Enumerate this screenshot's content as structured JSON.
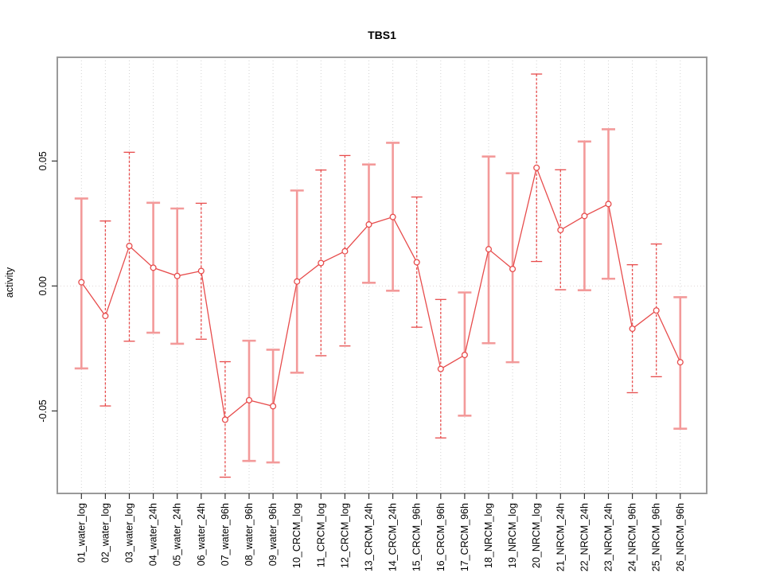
{
  "chart_data": {
    "type": "line",
    "title": "TBS1",
    "ylabel": "activity",
    "xlabel": "",
    "legend": "none",
    "grid": "vertical dotted gridlines at each category; dotted horizontal line at y=0",
    "marker": "open-circle",
    "error_bars": true,
    "categories": [
      "01_water_log",
      "02_water_log",
      "03_water_log",
      "04_water_24h",
      "05_water_24h",
      "06_water_24h",
      "07_water_96h",
      "08_water_96h",
      "09_water_96h",
      "10_CRCM_log",
      "11_CRCM_log",
      "12_CRCM_log",
      "13_CRCM_24h",
      "14_CRCM_24h",
      "15_CRCM_96h",
      "16_CRCM_96h",
      "17_CRCM_96h",
      "18_NRCM_log",
      "19_NRCM_log",
      "20_NRCM_log",
      "21_NRCM_24h",
      "22_NRCM_24h",
      "23_NRCM_24h",
      "24_NRCM_96h",
      "25_NRCM_96h",
      "26_NRCM_96h"
    ],
    "series": [
      {
        "name": "activity",
        "values": [
          0.0015,
          -0.012,
          0.016,
          0.0073,
          0.004,
          0.006,
          -0.0535,
          -0.0457,
          -0.0481,
          0.0018,
          0.0092,
          0.0139,
          0.0246,
          0.0276,
          0.0095,
          -0.0332,
          -0.0276,
          0.0147,
          0.0068,
          0.0473,
          0.0224,
          0.028,
          0.0328,
          -0.0171,
          -0.0098,
          -0.0305
        ],
        "error_upper": [
          0.035,
          0.026,
          0.0535,
          0.0333,
          0.031,
          0.0331,
          -0.0303,
          -0.0219,
          -0.0255,
          0.0382,
          0.0464,
          0.0522,
          0.0486,
          0.0573,
          0.0356,
          -0.0054,
          -0.0026,
          0.0518,
          0.0451,
          0.0848,
          0.0465,
          0.0578,
          0.0627,
          0.0085,
          0.0168,
          -0.0045
        ],
        "error_lower": [
          -0.033,
          -0.048,
          -0.0221,
          -0.0187,
          -0.0231,
          -0.0213,
          -0.0765,
          -0.07,
          -0.0706,
          -0.0347,
          -0.0279,
          -0.024,
          0.0013,
          -0.0019,
          -0.0165,
          -0.0608,
          -0.0519,
          -0.0229,
          -0.0305,
          0.0098,
          -0.0015,
          -0.0017,
          0.0029,
          -0.0427,
          -0.0363,
          -0.0571
        ],
        "bar_styles": [
          "solid",
          "dashed",
          "dashed",
          "solid",
          "solid",
          "dashed",
          "dashed",
          "solid",
          "solid",
          "solid",
          "dashed",
          "dashed",
          "solid",
          "solid",
          "dashed",
          "dashed",
          "solid",
          "solid",
          "solid",
          "dashed",
          "dashed",
          "solid",
          "solid",
          "dashed",
          "dashed",
          "solid"
        ]
      }
    ],
    "yticks": [
      -0.05,
      0,
      0.05
    ],
    "ytick_labels": [
      "-0.05",
      "0.00",
      "0.05"
    ],
    "ylim": [
      -0.083,
      0.0915
    ],
    "colors": {
      "line": "#e74c4c",
      "error_bar_solid": "#f39a9a",
      "error_bar_dashed": "#e74c4c",
      "gridline": "#d2d2d2",
      "zero_line": "#e0d6d6",
      "box_border": "#9a9a9a",
      "tick": "#333333",
      "text": "#000000"
    }
  }
}
